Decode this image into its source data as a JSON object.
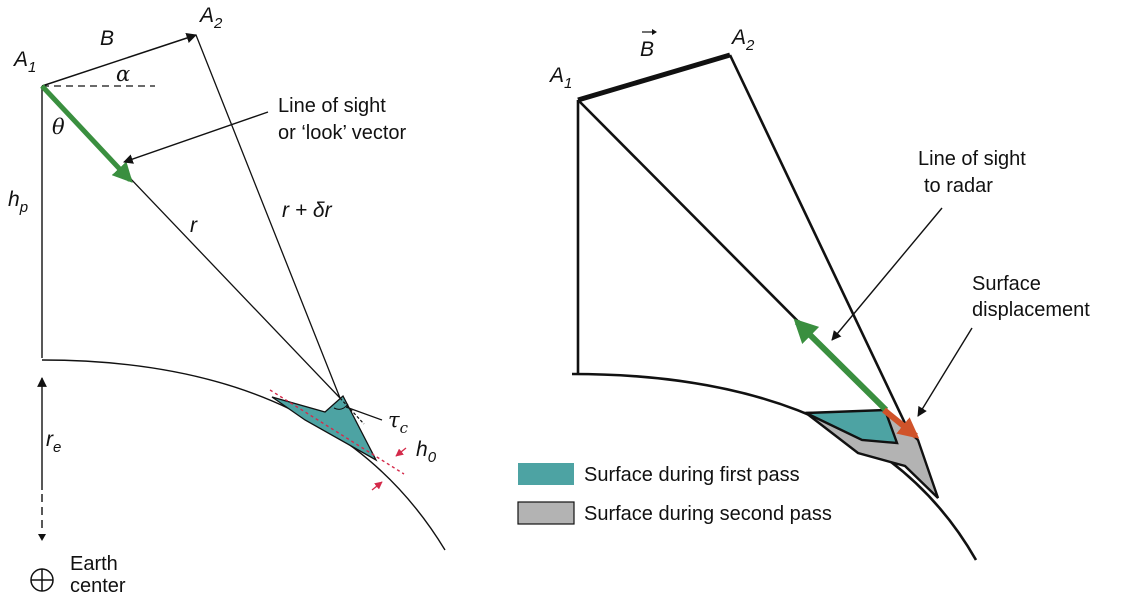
{
  "left_diagram": {
    "label_a1": "A",
    "label_a1_sub": "1",
    "label_a2": "A",
    "label_a2_sub": "2",
    "label_b": "B",
    "label_alpha": "α",
    "label_theta": "θ",
    "label_hp": "h",
    "label_hp_sub": "p",
    "label_r": "r",
    "label_r_delta": "r + δr",
    "los_line1": "Line of sight",
    "los_line2": "or ‘look’ vector",
    "label_tau": "τ",
    "label_tau_sub": "c",
    "label_h0": "h",
    "label_h0_sub": "0",
    "label_re": "r",
    "label_re_sub": "e",
    "earth_line1": "Earth",
    "earth_line2": "center",
    "los_color": "#3a8f3f",
    "surface_color": "#4da3a3",
    "marker_color": "#d42a4a"
  },
  "right_diagram": {
    "label_b": "B",
    "label_a1": "A",
    "label_a1_sub": "1",
    "label_a2": "A",
    "label_a2_sub": "2",
    "los_line1": "Line of sight",
    "los_line2": "to radar",
    "disp_line1": "Surface",
    "disp_line2": "displacement",
    "los_color": "#3a8f3f",
    "disp_color": "#d0532a",
    "first_color": "#4da3a3",
    "second_color": "#b3b3b3"
  },
  "legend": {
    "first_pass": "Surface during first pass",
    "second_pass": "Surface during second pass"
  }
}
